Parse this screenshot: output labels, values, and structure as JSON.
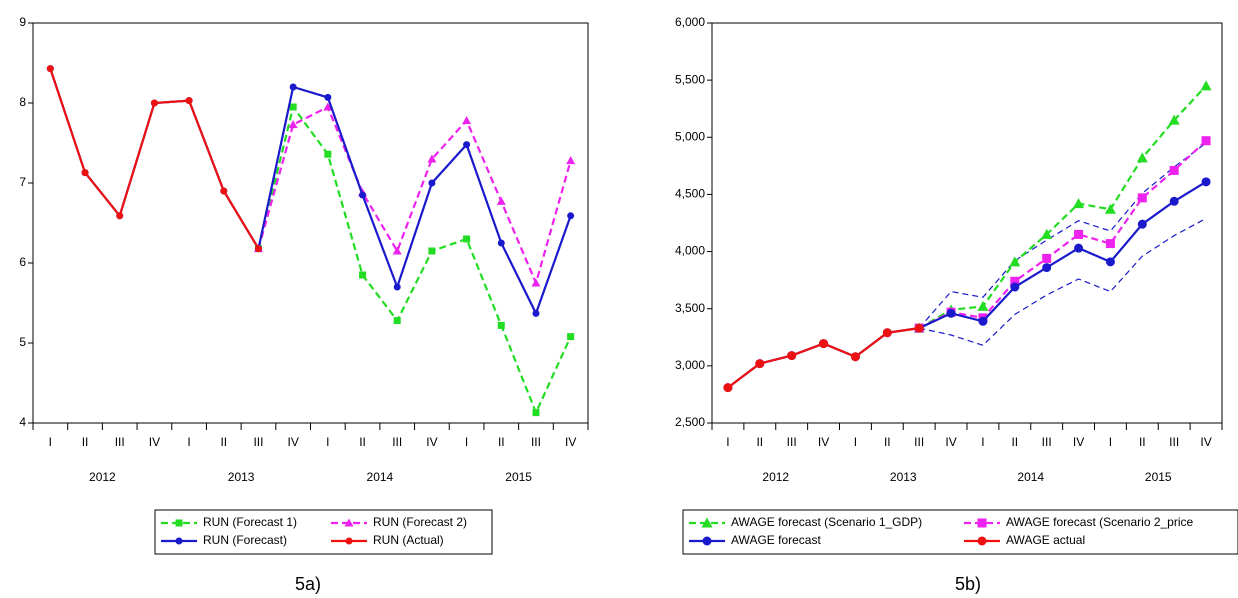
{
  "chart_data": [
    {
      "type": "line",
      "categories": [
        "I",
        "II",
        "III",
        "IV",
        "I",
        "II",
        "III",
        "IV",
        "I",
        "II",
        "III",
        "IV",
        "I",
        "II",
        "III",
        "IV"
      ],
      "x_groups": [
        "2012",
        "2013",
        "2014",
        "2015"
      ],
      "ylim": [
        4,
        9
      ],
      "yticks": [
        4,
        5,
        6,
        7,
        8,
        9
      ],
      "legend": "bottom",
      "caption": "5a)",
      "series": [
        {
          "name": "RUN  (Forecast 1)",
          "color": "#22dd22",
          "dash": true,
          "marker": "square",
          "values": [
            null,
            null,
            null,
            null,
            null,
            null,
            6.18,
            7.95,
            7.36,
            5.85,
            5.28,
            6.15,
            6.3,
            5.22,
            4.13,
            5.08
          ]
        },
        {
          "name": "RUN  (Forecast 2)",
          "color": "#ee22ee",
          "dash": true,
          "marker": "triangle",
          "values": [
            null,
            null,
            null,
            null,
            null,
            null,
            6.18,
            7.73,
            7.95,
            6.88,
            6.15,
            7.3,
            7.78,
            6.77,
            5.75,
            7.28
          ]
        },
        {
          "name": "RUN  (Forecast)",
          "color": "#1a1acc",
          "dash": false,
          "marker": "circle",
          "values": [
            8.43,
            7.13,
            6.59,
            8.0,
            8.03,
            6.9,
            6.18,
            8.2,
            8.07,
            6.85,
            5.7,
            7.0,
            7.48,
            6.25,
            5.37,
            6.59
          ]
        },
        {
          "name": "RUN (Actual)",
          "color": "#ee1111",
          "dash": false,
          "marker": "circle",
          "values": [
            8.43,
            7.13,
            6.59,
            8.0,
            8.03,
            6.9,
            6.18,
            null,
            null,
            null,
            null,
            null,
            null,
            null,
            null,
            null
          ]
        }
      ]
    },
    {
      "type": "line",
      "categories": [
        "I",
        "II",
        "III",
        "IV",
        "I",
        "II",
        "III",
        "IV",
        "I",
        "II",
        "III",
        "IV",
        "I",
        "II",
        "III",
        "IV"
      ],
      "x_groups": [
        "2012",
        "2013",
        "2014",
        "2015"
      ],
      "ylim": [
        2500,
        6000
      ],
      "yticks": [
        {
          "value": 2500,
          "label": "2,500"
        },
        {
          "value": 3000,
          "label": "3,000"
        },
        {
          "value": 3500,
          "label": "3,500"
        },
        {
          "value": 4000,
          "label": "4,000"
        },
        {
          "value": 4500,
          "label": "4,500"
        },
        {
          "value": 5000,
          "label": "5,000"
        },
        {
          "value": 5500,
          "label": "5,500"
        },
        {
          "value": 6000,
          "label": "6,000"
        }
      ],
      "legend": "bottom",
      "caption": "5b)",
      "series": [
        {
          "name": "AWAGE forecast (Scenario 1_GDP)",
          "color": "#22dd22",
          "dash": true,
          "marker": "triangle",
          "values": [
            null,
            null,
            null,
            null,
            null,
            null,
            3330,
            3490,
            3520,
            3910,
            4150,
            4420,
            4370,
            4820,
            5150,
            5450
          ]
        },
        {
          "name": "AWAGE forecast (Scenario 2_price",
          "color": "#ee22ee",
          "dash": true,
          "marker": "square",
          "values": [
            null,
            null,
            null,
            null,
            null,
            null,
            3330,
            3470,
            3420,
            3740,
            3940,
            4150,
            4070,
            4470,
            4710,
            4970
          ]
        },
        {
          "name": "AWAGE forecast",
          "color": "#1a1acc",
          "dash": false,
          "marker": "circle",
          "values": [
            2810,
            3020,
            3090,
            3195,
            3080,
            3290,
            3330,
            3460,
            3390,
            3690,
            3860,
            4030,
            3910,
            4240,
            4440,
            4610
          ]
        },
        {
          "name": "AWAGE actual",
          "color": "#ee1111",
          "dash": false,
          "marker": "circle",
          "values": [
            2810,
            3020,
            3090,
            3195,
            3080,
            3290,
            3330,
            null,
            null,
            null,
            null,
            null,
            null,
            null,
            null,
            null
          ]
        },
        {
          "color": "#1a1acc",
          "dash": true,
          "marker": "none",
          "values": [
            null,
            null,
            null,
            null,
            null,
            null,
            3330,
            3650,
            3600,
            3920,
            4100,
            4270,
            4180,
            4510,
            4740,
            4950
          ]
        },
        {
          "color": "#1a1acc",
          "dash": true,
          "marker": "none",
          "values": [
            null,
            null,
            null,
            null,
            null,
            null,
            3330,
            3270,
            3180,
            3450,
            3620,
            3760,
            3650,
            3960,
            4140,
            4290
          ]
        }
      ]
    }
  ]
}
